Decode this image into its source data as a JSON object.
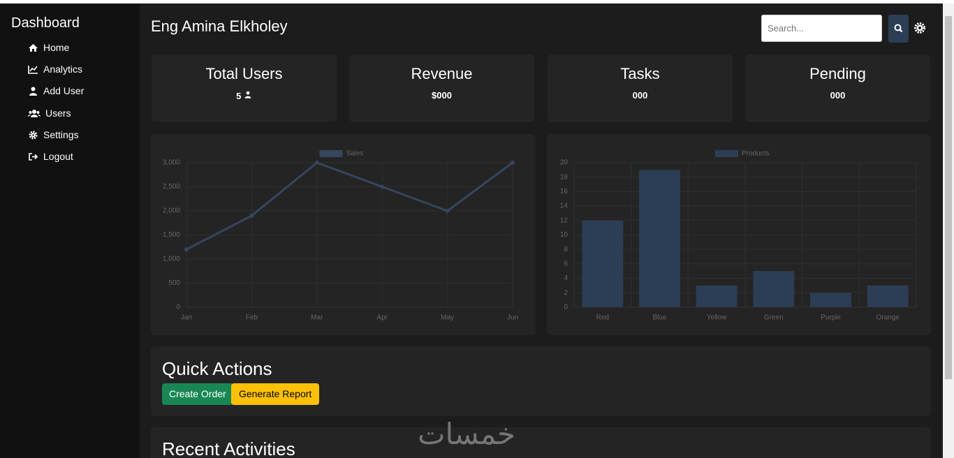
{
  "sidebar": {
    "title": "Dashboard",
    "items": [
      "Home",
      "Analytics",
      "Add User",
      "Users",
      "Settings",
      "Logout"
    ]
  },
  "header": {
    "title": "Eng Amina Elkholey",
    "search_placeholder": "Search..."
  },
  "cards": [
    {
      "title": "Total Users",
      "value": 5
    },
    {
      "title": "Revenue",
      "value": "$000"
    },
    {
      "title": "Tasks",
      "value": "000"
    },
    {
      "title": "Pending",
      "value": "000"
    }
  ],
  "chart_data": [
    {
      "type": "line",
      "categories": [
        "Jan",
        "Feb",
        "Mar",
        "Apr",
        "May",
        "Jun"
      ],
      "series": [
        {
          "name": "Sales",
          "color": "#34475f",
          "values": [
            1200,
            1900,
            3000,
            2500,
            2000,
            3000
          ]
        }
      ],
      "ylim": [
        0,
        3000
      ],
      "yticks": [
        0,
        500,
        {
          "value": 1000,
          "label": "1,000"
        },
        {
          "value": 1500,
          "label": "1,500"
        },
        {
          "value": 2000,
          "label": "2,000"
        },
        {
          "value": 2500,
          "label": "2,500"
        },
        {
          "value": 3000,
          "label": "3,000"
        }
      ],
      "grid": true
    },
    {
      "type": "bar",
      "categories": [
        "Red",
        "Blue",
        "Yellow",
        "Green",
        "Purple",
        "Orange"
      ],
      "series": [
        {
          "name": "Products",
          "color": "#2c3e55",
          "values": [
            12,
            19,
            3,
            5,
            2,
            3
          ]
        }
      ],
      "ylim": [
        0,
        20
      ],
      "yticks": [
        0,
        2,
        4,
        6,
        8,
        10,
        12,
        14,
        16,
        18,
        20
      ],
      "grid": true
    }
  ],
  "quick_actions": {
    "title": "Quick Actions",
    "buttons": [
      "Create Order",
      "Generate Report"
    ]
  },
  "recent_activities": {
    "title": "Recent Activities"
  },
  "watermark": "خمسات"
}
